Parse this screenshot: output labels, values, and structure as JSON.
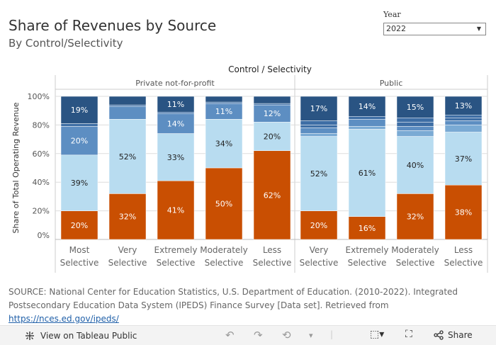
{
  "header": {
    "title": "Share of Revenues by Source",
    "subtitle": "By Control/Selectivity"
  },
  "filter": {
    "label": "Year",
    "value": "2022"
  },
  "colors": {
    "tuition": "#c94f02",
    "gov_appropriations": "#b8dcf0",
    "grants_contracts": "#5d8ec2",
    "other_top": "#2a5483",
    "other_band_1": "#3e6ea5",
    "other_band_2": "#7aaad4",
    "grid": "#dddddd",
    "text": "#333333"
  },
  "chart_data": {
    "type": "stacked-bar",
    "title": "Control  /  Selectivity",
    "ylabel": "Share of Total Operating Revenue",
    "ylim": [
      0,
      100
    ],
    "yticks": [
      "0%",
      "20%",
      "40%",
      "60%",
      "80%",
      "100%"
    ],
    "groups": [
      {
        "name": "Private not-for-profit",
        "categories": [
          {
            "label": [
              "Most",
              "Selective"
            ],
            "segments": [
              {
                "value": 20,
                "color": "tuition",
                "label": "20%"
              },
              {
                "value": 39,
                "color": "gov_appropriations",
                "label": "39%"
              },
              {
                "value": 20,
                "color": "grants_contracts",
                "label": "20%"
              },
              {
                "value": 2,
                "color": "other_band_1",
                "label": ""
              },
              {
                "value": 19,
                "color": "other_top",
                "label": "19%"
              }
            ]
          },
          {
            "label": [
              "Very",
              "Selective"
            ],
            "segments": [
              {
                "value": 32,
                "color": "tuition",
                "label": "32%"
              },
              {
                "value": 52,
                "color": "gov_appropriations",
                "label": "52%"
              },
              {
                "value": 9,
                "color": "grants_contracts",
                "label": ""
              },
              {
                "value": 1,
                "color": "other_band_1",
                "label": ""
              },
              {
                "value": 6,
                "color": "other_top",
                "label": ""
              }
            ]
          },
          {
            "label": [
              "Extremely",
              "Selective"
            ],
            "segments": [
              {
                "value": 41,
                "color": "tuition",
                "label": "41%"
              },
              {
                "value": 33,
                "color": "gov_appropriations",
                "label": "33%"
              },
              {
                "value": 14,
                "color": "grants_contracts",
                "label": "14%"
              },
              {
                "value": 1,
                "color": "other_band_1",
                "label": ""
              },
              {
                "value": 11,
                "color": "other_top",
                "label": "11%"
              }
            ]
          },
          {
            "label": [
              "Moderately",
              "Selective"
            ],
            "segments": [
              {
                "value": 50,
                "color": "tuition",
                "label": "50%"
              },
              {
                "value": 34,
                "color": "gov_appropriations",
                "label": "34%"
              },
              {
                "value": 11,
                "color": "grants_contracts",
                "label": "11%"
              },
              {
                "value": 1,
                "color": "other_band_1",
                "label": ""
              },
              {
                "value": 4,
                "color": "other_top",
                "label": ""
              }
            ]
          },
          {
            "label": [
              "Less",
              "Selective"
            ],
            "segments": [
              {
                "value": 62,
                "color": "tuition",
                "label": "62%"
              },
              {
                "value": 20,
                "color": "gov_appropriations",
                "label": "20%"
              },
              {
                "value": 12,
                "color": "grants_contracts",
                "label": "12%"
              },
              {
                "value": 1,
                "color": "other_band_1",
                "label": ""
              },
              {
                "value": 5,
                "color": "other_top",
                "label": ""
              }
            ]
          }
        ]
      },
      {
        "name": "Public",
        "categories": [
          {
            "label": [
              "Very",
              "Selective"
            ],
            "segments": [
              {
                "value": 20,
                "color": "tuition",
                "label": "20%"
              },
              {
                "value": 52,
                "color": "gov_appropriations",
                "label": "52%"
              },
              {
                "value": 2,
                "color": "other_band_2",
                "label": ""
              },
              {
                "value": 4,
                "color": "grants_contracts",
                "label": ""
              },
              {
                "value": 2,
                "color": "other_band_1",
                "label": ""
              },
              {
                "value": 3,
                "color": "other_band_1",
                "label": ""
              },
              {
                "value": 17,
                "color": "other_top",
                "label": "17%"
              }
            ]
          },
          {
            "label": [
              "Extremely",
              "Selective"
            ],
            "segments": [
              {
                "value": 16,
                "color": "tuition",
                "label": "16%"
              },
              {
                "value": 61,
                "color": "gov_appropriations",
                "label": "61%"
              },
              {
                "value": 2,
                "color": "other_band_2",
                "label": ""
              },
              {
                "value": 5,
                "color": "grants_contracts",
                "label": ""
              },
              {
                "value": 2,
                "color": "other_band_1",
                "label": ""
              },
              {
                "value": 14,
                "color": "other_top",
                "label": "14%"
              }
            ]
          },
          {
            "label": [
              "Moderately",
              "Selective"
            ],
            "segments": [
              {
                "value": 32,
                "color": "tuition",
                "label": "32%"
              },
              {
                "value": 40,
                "color": "gov_appropriations",
                "label": "40%"
              },
              {
                "value": 4,
                "color": "other_band_2",
                "label": ""
              },
              {
                "value": 3,
                "color": "grants_contracts",
                "label": ""
              },
              {
                "value": 3,
                "color": "other_band_1",
                "label": ""
              },
              {
                "value": 3,
                "color": "other_band_1",
                "label": ""
              },
              {
                "value": 15,
                "color": "other_top",
                "label": "15%"
              }
            ]
          },
          {
            "label": [
              "Less",
              "Selective"
            ],
            "segments": [
              {
                "value": 38,
                "color": "tuition",
                "label": "38%"
              },
              {
                "value": 37,
                "color": "gov_appropriations",
                "label": "37%"
              },
              {
                "value": 5,
                "color": "other_band_2",
                "label": ""
              },
              {
                "value": 3,
                "color": "grants_contracts",
                "label": ""
              },
              {
                "value": 2,
                "color": "other_band_1",
                "label": ""
              },
              {
                "value": 2,
                "color": "other_band_1",
                "label": ""
              },
              {
                "value": 13,
                "color": "other_top",
                "label": "13%"
              }
            ]
          }
        ]
      }
    ]
  },
  "source": {
    "text": "SOURCE: National Center for Education Statistics, U.S. Department of Education. (2010-2022). Integrated Postsecondary Education Data System (IPEDS) Finance Survey [Data set]. Retrieved from ",
    "link": "https://nces.ed.gov/ipeds/"
  },
  "toolbar": {
    "view_label": "View on Tableau Public",
    "share_label": "Share",
    "undo_icon": "undo-icon",
    "redo_icon": "redo-icon",
    "revert_icon": "revert-icon",
    "download_icon": "download-icon",
    "fullscreen_icon": "fullscreen-icon",
    "share_icon": "share-icon"
  }
}
